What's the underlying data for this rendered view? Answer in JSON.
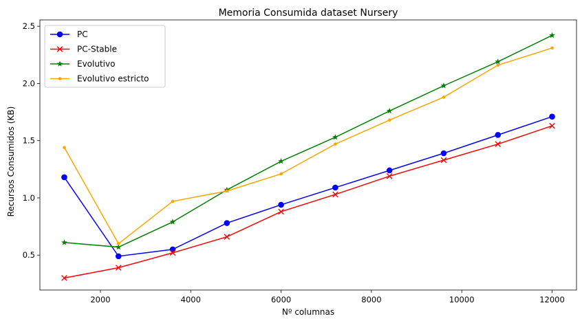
{
  "chart_data": {
    "type": "line",
    "title": "Memoria Consumida dataset Nursery",
    "xlabel": "Nº columnas",
    "ylabel": "Recursos Consumidos (KB)",
    "xlim": [
      660,
      12540
    ],
    "ylim": [
      0.195,
      2.555
    ],
    "xticks": [
      2000,
      4000,
      6000,
      8000,
      10000,
      12000
    ],
    "yticks": [
      0.5,
      1.0,
      1.5,
      2.0,
      2.5
    ],
    "xtick_labels": [
      "2000",
      "4000",
      "6000",
      "8000",
      "10000",
      "12000"
    ],
    "ytick_labels": [
      "0.5",
      "1.0",
      "1.5",
      "2.0",
      "2.5"
    ],
    "grid": false,
    "legend_position": "top-left",
    "x": [
      1200,
      2400,
      3600,
      4800,
      6000,
      7200,
      8400,
      9600,
      10800,
      12000
    ],
    "series": [
      {
        "name": "PC",
        "color": "#0000ff",
        "marker": "circle",
        "values": [
          1.18,
          0.49,
          0.55,
          0.78,
          0.94,
          1.09,
          1.24,
          1.39,
          1.55,
          1.71
        ]
      },
      {
        "name": "PC-Stable",
        "color": "#ff0000",
        "marker": "x",
        "values": [
          0.3,
          0.39,
          0.52,
          0.66,
          0.88,
          1.03,
          1.19,
          1.33,
          1.47,
          1.63
        ]
      },
      {
        "name": "Evolutivo",
        "color": "#008000",
        "marker": "star",
        "values": [
          0.61,
          0.57,
          0.79,
          1.07,
          1.32,
          1.53,
          1.76,
          1.98,
          2.19,
          2.42
        ]
      },
      {
        "name": "Evolutivo estricto",
        "color": "#ffa500",
        "marker": "dot",
        "values": [
          1.44,
          0.6,
          0.97,
          1.06,
          1.21,
          1.47,
          1.68,
          1.88,
          2.16,
          2.31
        ]
      }
    ]
  }
}
